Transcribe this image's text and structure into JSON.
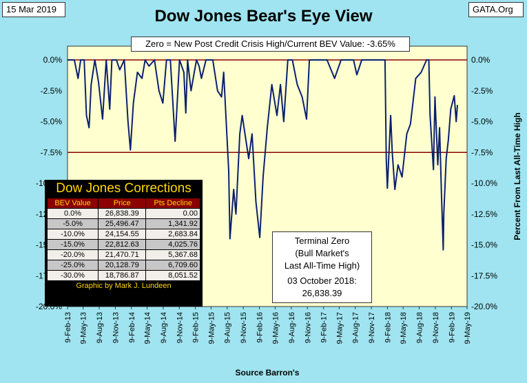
{
  "header": {
    "date": "15 Mar 2019",
    "title": "Dow Jones Bear's Eye View",
    "site": "GATA.Org",
    "bev_note": "Zero = New Post Credit Crisis High/Current BEV Value:  -3.65%"
  },
  "colors": {
    "background": "#9fe4f0",
    "plot_area": "#ffffd0",
    "series": "#0a1f6e",
    "reference_line": "#8b0000",
    "table_header": "#8b0000",
    "table_gold": "#ffd700"
  },
  "corrections_table": {
    "title": "Dow Jones Corrections",
    "headers": [
      "BEV Value",
      "Price",
      "Pts Decline"
    ],
    "rows": [
      [
        "0.0%",
        "26,838.39",
        "0.00"
      ],
      [
        "-5.0%",
        "25,496.47",
        "1,341.92"
      ],
      [
        "-10.0%",
        "24,154.55",
        "2,683.84"
      ],
      [
        "-15.0%",
        "22,812.63",
        "4,025.76"
      ],
      [
        "-20.0%",
        "21,470.71",
        "5,367.68"
      ],
      [
        "-25.0%",
        "20,128.79",
        "6,709.60"
      ],
      [
        "-30.0%",
        "18,786.87",
        "8,051.52"
      ]
    ],
    "credit": "Graphic by Mark J. Lundeen"
  },
  "terminal_zero": {
    "line1": "Terminal Zero",
    "line2": "(Bull Market's",
    "line3": "Last All-Time High)",
    "line4": "03 October 2018:",
    "line5": "26,838.39"
  },
  "chart_data": {
    "type": "line",
    "title": "Dow Jones Bear's Eye View",
    "xlabel": "Source Barron's",
    "ylabel": "Percent From Last All-Time High",
    "ylim": [
      -20,
      0
    ],
    "yticks": [
      "0.0%",
      "-2.5%",
      "-5.0%",
      "-7.5%",
      "-10.0%",
      "-12.5%",
      "-15.0%",
      "-17.5%",
      "-20.0%"
    ],
    "ytick_values": [
      0,
      -2.5,
      -5,
      -7.5,
      -10,
      -12.5,
      -15,
      -17.5,
      -20
    ],
    "xlim": [
      "2013-02-09",
      "2019-05-09"
    ],
    "xticks": [
      "9-Feb-13",
      "9-May-13",
      "9-Aug-13",
      "9-Nov-13",
      "9-Feb-14",
      "9-May-14",
      "9-Aug-14",
      "9-Nov-14",
      "9-Feb-15",
      "9-May-15",
      "9-Aug-15",
      "9-Nov-15",
      "9-Feb-16",
      "9-May-16",
      "9-Aug-16",
      "9-Nov-16",
      "9-Feb-17",
      "9-May-17",
      "9-Aug-17",
      "9-Nov-17",
      "9-Feb-18",
      "9-May-18",
      "9-Aug-18",
      "9-Nov-18",
      "9-Feb-19",
      "9-May-19"
    ],
    "xtick_dates": [
      "2013-02-09",
      "2013-05-09",
      "2013-08-09",
      "2013-11-09",
      "2014-02-09",
      "2014-05-09",
      "2014-08-09",
      "2014-11-09",
      "2015-02-09",
      "2015-05-09",
      "2015-08-09",
      "2015-11-09",
      "2016-02-09",
      "2016-05-09",
      "2016-08-09",
      "2016-11-09",
      "2017-02-09",
      "2017-05-09",
      "2017-08-09",
      "2017-11-09",
      "2018-02-09",
      "2018-05-09",
      "2018-08-09",
      "2018-11-09",
      "2019-02-09",
      "2019-05-09"
    ],
    "reference_lines": [
      0,
      -7.5
    ],
    "grid": false,
    "series": [
      {
        "x": [
          "2013-02-09",
          "2013-03-01",
          "2013-03-20",
          "2013-04-10",
          "2013-04-25",
          "2013-05-15",
          "2013-05-28",
          "2013-06-12",
          "2013-06-24",
          "2013-07-15",
          "2013-08-05",
          "2013-08-28",
          "2013-09-18",
          "2013-10-08",
          "2013-10-20",
          "2013-11-15",
          "2013-12-04",
          "2013-12-30",
          "2014-01-20",
          "2014-02-03",
          "2014-02-20",
          "2014-03-15",
          "2014-04-10",
          "2014-04-28",
          "2014-05-20",
          "2014-06-20",
          "2014-07-16",
          "2014-08-07",
          "2014-08-28",
          "2014-09-19",
          "2014-10-16",
          "2014-11-10",
          "2014-12-05",
          "2014-12-16",
          "2014-12-26",
          "2015-01-15",
          "2015-02-15",
          "2015-03-02",
          "2015-03-15",
          "2015-04-10",
          "2015-05-19",
          "2015-06-15",
          "2015-07-08",
          "2015-07-20",
          "2015-08-18",
          "2015-08-25",
          "2015-09-15",
          "2015-09-28",
          "2015-10-20",
          "2015-11-03",
          "2015-12-10",
          "2015-12-29",
          "2016-01-20",
          "2016-02-11",
          "2016-03-01",
          "2016-03-25",
          "2016-04-20",
          "2016-05-19",
          "2016-06-08",
          "2016-06-27",
          "2016-07-20",
          "2016-08-15",
          "2016-09-12",
          "2016-10-10",
          "2016-11-04",
          "2016-11-20",
          "2016-12-20",
          "2017-01-26",
          "2017-03-01",
          "2017-04-13",
          "2017-05-20",
          "2017-06-20",
          "2017-07-30",
          "2017-08-18",
          "2017-09-15",
          "2017-10-20",
          "2017-11-20",
          "2017-12-20",
          "2018-01-26",
          "2018-02-02",
          "2018-02-08",
          "2018-02-27",
          "2018-03-08",
          "2018-03-23",
          "2018-04-10",
          "2018-05-03",
          "2018-05-30",
          "2018-06-20",
          "2018-07-20",
          "2018-08-20",
          "2018-09-20",
          "2018-10-03",
          "2018-10-10",
          "2018-10-29",
          "2018-11-07",
          "2018-11-23",
          "2018-12-03",
          "2018-12-14",
          "2018-12-24",
          "2018-12-27",
          "2019-01-10",
          "2019-01-22",
          "2019-02-05",
          "2019-02-25",
          "2019-03-08",
          "2019-03-15"
        ],
        "y": [
          0,
          0,
          0,
          -1.5,
          0,
          0,
          -4.5,
          -5.5,
          -2,
          0,
          -1.8,
          -4.8,
          0,
          -4,
          0,
          0,
          -0.8,
          0,
          -5,
          -7.3,
          -3.5,
          -1,
          -1.5,
          0,
          -0.5,
          0,
          -2.5,
          -3.5,
          0,
          0,
          -6.6,
          0,
          -1,
          -4.3,
          0,
          -2.5,
          0,
          -0.5,
          -1.5,
          0,
          0,
          -2.5,
          -3,
          -1,
          -9,
          -14.5,
          -10.5,
          -12.5,
          -6,
          -4.5,
          -8,
          -6,
          -11.5,
          -14.4,
          -9.5,
          -5.5,
          -2,
          -4.5,
          -2,
          -5,
          0,
          0,
          -2,
          -3,
          -4.8,
          0,
          0,
          0,
          0,
          -1.5,
          0,
          0,
          0,
          -1.2,
          0,
          0,
          0,
          0,
          0,
          -8,
          -10.4,
          -4.5,
          -7.5,
          -10.5,
          -8.5,
          -9.5,
          -6,
          -5.2,
          -1.5,
          -1,
          0,
          0,
          -4.5,
          -8.9,
          -3,
          -8.5,
          -5.5,
          -11,
          -15.4,
          -12.5,
          -8,
          -6.5,
          -4,
          -2.9,
          -5,
          -3.65
        ]
      }
    ]
  }
}
